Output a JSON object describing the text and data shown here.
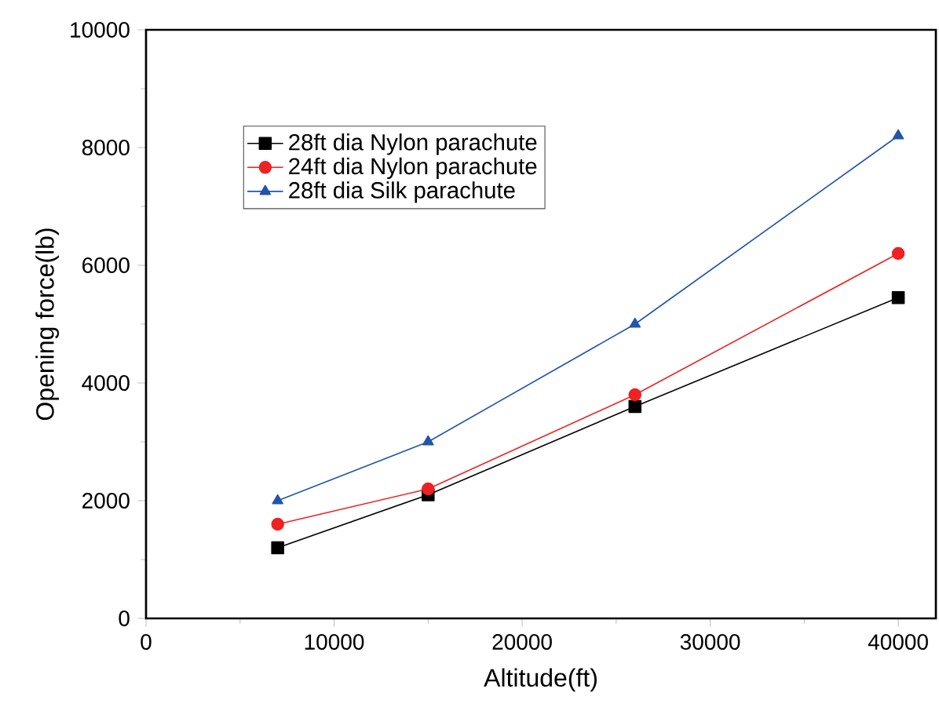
{
  "chart_data": {
    "type": "line",
    "xlabel": "Altitude(ft)",
    "ylabel": "Opening force(lb)",
    "x": [
      7000,
      15000,
      26000,
      40000
    ],
    "series": [
      {
        "name": "28ft dia Nylon parachute",
        "color": "#000000",
        "marker": "square",
        "values": [
          1200,
          2100,
          3600,
          5450
        ]
      },
      {
        "name": "24ft dia Nylon parachute",
        "color": "#ee2222",
        "marker": "circle",
        "values": [
          1600,
          2200,
          3800,
          6200
        ]
      },
      {
        "name": "28ft dia Silk parachute",
        "color": "#2255aa",
        "marker": "triangle",
        "values": [
          2000,
          3000,
          5000,
          8200
        ]
      }
    ],
    "xlim": [
      0,
      42000
    ],
    "xticks": [
      0,
      10000,
      20000,
      30000,
      40000
    ],
    "ylim": [
      0,
      10000
    ],
    "yticks": [
      0,
      2000,
      4000,
      6000,
      8000,
      10000
    ],
    "grid": false,
    "legend": "top left",
    "line_style": "solid"
  }
}
